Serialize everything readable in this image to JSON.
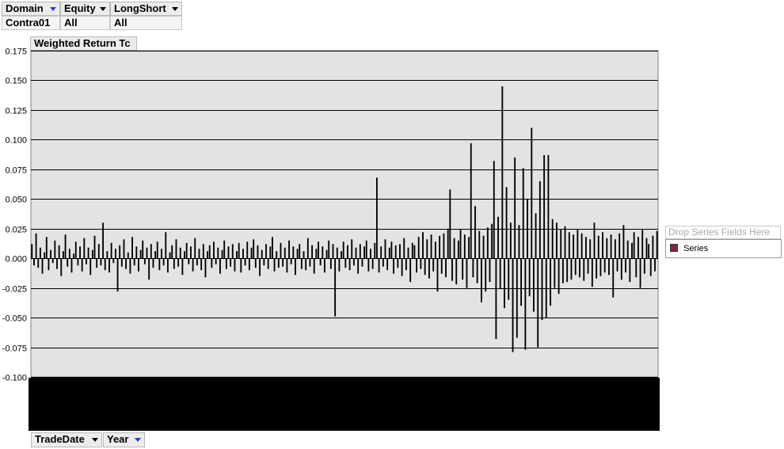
{
  "filters": [
    {
      "label": "Domain",
      "value": "Contra01",
      "arrow_color": "#1f3fd6"
    },
    {
      "label": "Equity",
      "value": "All",
      "arrow_color": "#000000"
    },
    {
      "label": "LongShort",
      "value": "All",
      "arrow_color": "#000000"
    }
  ],
  "data_field": {
    "label": "Weighted Return Tc"
  },
  "series_area": {
    "placeholder": "Drop Series Fields Here",
    "legend_label": "Series",
    "legend_color": "#8b2252"
  },
  "category_fields": [
    {
      "label": "TradeDate",
      "arrow_color": "#000000"
    },
    {
      "label": "Year",
      "arrow_color": "#1f3fd6"
    }
  ],
  "colors": {
    "plot_background": "#e3e3e3",
    "bar": "#000000",
    "gridline": "#000000"
  },
  "chart_data": {
    "type": "bar",
    "title": "",
    "xlabel": "",
    "ylabel": "Weighted Return Tc",
    "ylim": [
      -0.1,
      0.175
    ],
    "yticks": [
      0.175,
      0.15,
      0.125,
      0.1,
      0.075,
      0.05,
      0.025,
      0.0,
      -0.025,
      -0.05,
      -0.075,
      -0.1
    ],
    "ytick_labels": [
      "0.175",
      "0.150",
      "0.125",
      "0.100",
      "0.075",
      "0.050",
      "0.025",
      "0.000",
      "-0.025",
      "-0.050",
      "-0.075",
      "-0.100"
    ],
    "grid": true,
    "x_tick_labels_legible": false,
    "notable_values": [
      -0.049,
      0.068,
      0.058,
      0.097,
      0.044,
      0.082,
      -0.068,
      0.145,
      0.06,
      -0.079,
      0.085,
      -0.067,
      0.076,
      -0.077,
      0.11,
      -0.075,
      0.087,
      -0.052,
      0.087,
      -0.05,
      0.03,
      -0.028,
      -0.037
    ],
    "series": [
      {
        "name": "Series",
        "values": [
          0.012,
          -0.006,
          0.021,
          -0.008,
          0.009,
          -0.013,
          0.005,
          0.018,
          -0.01,
          0.007,
          -0.004,
          0.015,
          -0.009,
          0.011,
          -0.015,
          0.006,
          0.02,
          -0.007,
          0.008,
          -0.012,
          0.004,
          0.014,
          -0.006,
          0.01,
          -0.011,
          0.017,
          -0.005,
          0.009,
          -0.014,
          0.007,
          0.019,
          -0.008,
          0.012,
          -0.006,
          0.03,
          -0.01,
          0.006,
          -0.012,
          0.013,
          -0.004,
          0.008,
          -0.028,
          0.011,
          -0.007,
          0.016,
          -0.009,
          0.005,
          -0.013,
          0.018,
          -0.006,
          0.01,
          -0.011,
          0.007,
          0.015,
          -0.005,
          0.009,
          -0.018,
          0.012,
          -0.008,
          0.006,
          0.014,
          -0.01,
          0.008,
          -0.006,
          0.022,
          -0.012,
          0.005,
          0.011,
          -0.009,
          0.016,
          -0.007,
          0.009,
          -0.014,
          0.006,
          0.013,
          -0.005,
          0.01,
          -0.011,
          0.017,
          -0.006,
          0.008,
          -0.01,
          0.012,
          -0.016,
          0.006,
          0.011,
          -0.008,
          0.014,
          -0.005,
          0.009,
          -0.013,
          0.007,
          0.015,
          -0.009,
          0.01,
          -0.007,
          0.012,
          -0.011,
          0.006,
          0.013,
          -0.012,
          0.008,
          -0.006,
          0.014,
          -0.01,
          0.009,
          0.016,
          -0.008,
          0.011,
          -0.015,
          0.007,
          -0.006,
          0.012,
          -0.009,
          0.01,
          0.018,
          -0.011,
          0.006,
          -0.008,
          0.013,
          -0.007,
          0.009,
          -0.012,
          0.015,
          -0.005,
          0.01,
          -0.014,
          0.008,
          0.012,
          -0.009,
          0.006,
          -0.01,
          0.017,
          -0.007,
          0.011,
          -0.013,
          0.008,
          0.014,
          -0.006,
          0.01,
          -0.012,
          0.007,
          0.015,
          -0.009,
          0.012,
          -0.049,
          0.009,
          -0.011,
          0.006,
          0.014,
          -0.008,
          0.011,
          -0.01,
          0.016,
          -0.006,
          0.009,
          -0.013,
          0.012,
          -0.007,
          0.01,
          0.015,
          -0.011,
          0.008,
          -0.009,
          0.013,
          0.068,
          -0.012,
          0.01,
          -0.007,
          0.016,
          -0.01,
          0.009,
          0.014,
          -0.013,
          0.011,
          -0.008,
          0.012,
          -0.015,
          0.017,
          -0.01,
          0.009,
          -0.02,
          0.013,
          0.011,
          -0.012,
          0.018,
          -0.009,
          0.022,
          -0.014,
          0.016,
          -0.017,
          0.02,
          -0.011,
          0.014,
          -0.028,
          0.019,
          -0.013,
          0.021,
          -0.016,
          0.025,
          0.058,
          -0.019,
          0.017,
          -0.022,
          0.015,
          0.024,
          -0.018,
          0.02,
          -0.025,
          0.018,
          0.097,
          -0.016,
          0.044,
          -0.021,
          0.023,
          -0.037,
          0.019,
          -0.028,
          0.026,
          -0.02,
          0.029,
          0.082,
          -0.068,
          0.035,
          -0.026,
          0.145,
          -0.042,
          0.06,
          -0.035,
          0.03,
          -0.079,
          0.085,
          -0.067,
          0.028,
          -0.04,
          0.076,
          -0.077,
          0.05,
          -0.032,
          0.11,
          -0.045,
          0.038,
          -0.075,
          0.065,
          -0.052,
          0.087,
          -0.05,
          0.087,
          -0.04,
          0.033,
          -0.025,
          0.03,
          -0.03,
          0.024,
          -0.021,
          0.027,
          -0.02,
          0.022,
          -0.018,
          0.02,
          -0.014,
          0.024,
          -0.016,
          0.021,
          -0.019,
          0.018,
          -0.013,
          0.016,
          -0.024,
          0.03,
          -0.017,
          0.019,
          -0.015,
          0.022,
          -0.012,
          0.017,
          -0.014,
          0.02,
          -0.033,
          0.016,
          -0.011,
          0.021,
          -0.018,
          0.028,
          -0.012,
          0.015,
          -0.02,
          0.013,
          0.022,
          -0.016,
          0.018,
          -0.025,
          0.024,
          -0.013,
          0.017,
          0.012,
          -0.015,
          0.019,
          -0.011,
          0.023
        ]
      }
    ]
  }
}
